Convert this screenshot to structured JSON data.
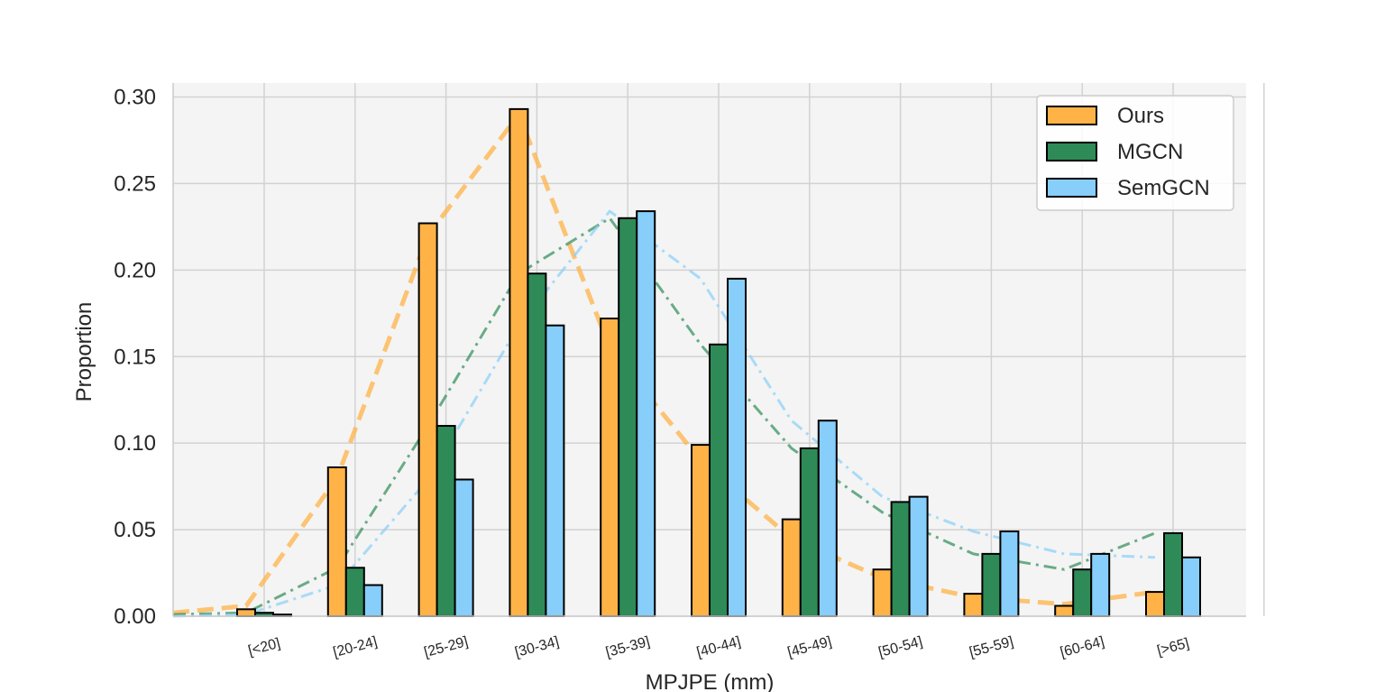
{
  "chart_data": {
    "type": "bar",
    "categories": [
      "[<20]",
      "[20-24]",
      "[25-29]",
      "[30-34]",
      "[35-39]",
      "[40-44]",
      "[45-49]",
      "[50-54]",
      "[55-59]",
      "[60-64]",
      "[>65]"
    ],
    "series": [
      {
        "name": "Ours",
        "color": "#FFB347",
        "values": [
          0.004,
          0.086,
          0.227,
          0.293,
          0.172,
          0.099,
          0.056,
          0.027,
          0.013,
          0.006,
          0.014
        ]
      },
      {
        "name": "MGCN",
        "color": "#2E8B57",
        "values": [
          0.002,
          0.028,
          0.11,
          0.198,
          0.23,
          0.157,
          0.097,
          0.066,
          0.036,
          0.027,
          0.048
        ]
      },
      {
        "name": "SemGCN",
        "color": "#87CEFA",
        "values": [
          0.001,
          0.018,
          0.079,
          0.168,
          0.234,
          0.195,
          0.113,
          0.069,
          0.049,
          0.036,
          0.034
        ]
      }
    ],
    "trend_lines": [
      {
        "series": "Ours",
        "style": "dashed",
        "values": [
          0.002,
          0.006,
          0.08,
          0.22,
          0.29,
          0.155,
          0.09,
          0.045,
          0.022,
          0.011,
          0.007,
          0.014
        ]
      },
      {
        "series": "MGCN",
        "style": "dash-dot",
        "values": [
          0.001,
          0.002,
          0.028,
          0.11,
          0.198,
          0.23,
          0.157,
          0.097,
          0.06,
          0.036,
          0.027,
          0.048
        ]
      },
      {
        "series": "SemGCN",
        "style": "dash-dot",
        "values": [
          0.0,
          0.001,
          0.018,
          0.079,
          0.168,
          0.234,
          0.195,
          0.113,
          0.069,
          0.049,
          0.036,
          0.034
        ]
      }
    ],
    "title": "",
    "xlabel": "MPJPE (mm)",
    "ylabel": "Proportion",
    "ylim": [
      0,
      0.3
    ],
    "yticks": [
      "0.00",
      "0.05",
      "0.10",
      "0.15",
      "0.20",
      "0.25",
      "0.30"
    ],
    "grid": true,
    "legend_position": "top-right"
  }
}
